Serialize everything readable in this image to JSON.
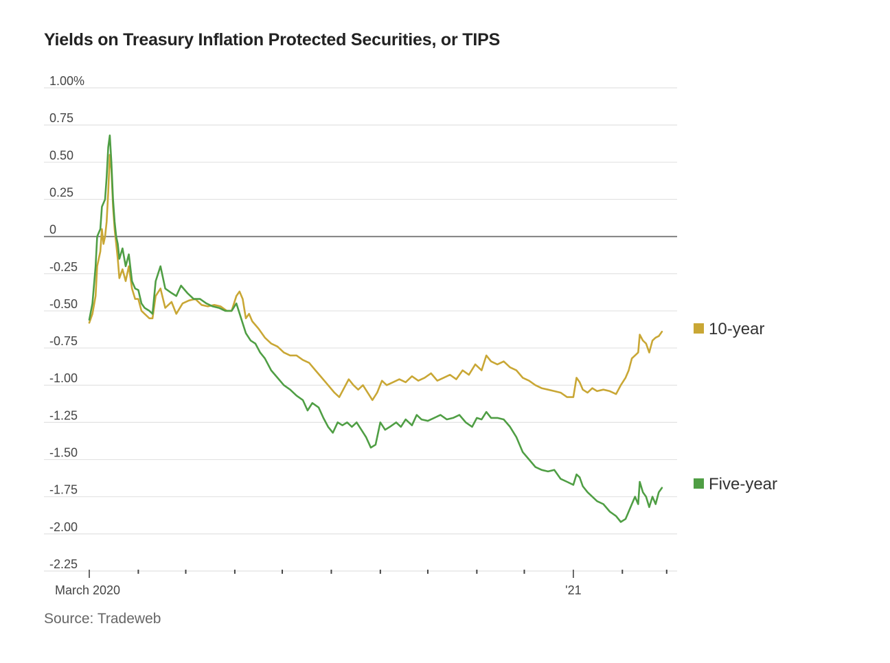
{
  "title": "Yields on Treasury Inflation Protected Securities, or TIPS",
  "source": "Source: Tradeweb",
  "chart_data": {
    "type": "line",
    "title": "Yields on Treasury Inflation Protected Securities, or TIPS",
    "xlabel": "",
    "ylabel": "",
    "xlim": [
      "2020-03-01",
      "2021-03-05"
    ],
    "ylim": [
      -2.25,
      1.0
    ],
    "yticks": [
      1.0,
      0.75,
      0.5,
      0.25,
      0,
      -0.25,
      -0.5,
      -0.75,
      -1.0,
      -1.25,
      -1.5,
      -1.75,
      -2.0,
      -2.25
    ],
    "ytick_labels": [
      "1.00%",
      "0.75",
      "0.50",
      "0.25",
      "0",
      "-0.25",
      "-0.50",
      "-0.75",
      "-1.00",
      "-1.25",
      "-1.50",
      "-1.75",
      "-2.00",
      "-2.25"
    ],
    "xticks": [
      "2020-03-01",
      "2020-04-01",
      "2020-05-01",
      "2020-06-01",
      "2020-07-01",
      "2020-08-01",
      "2020-09-01",
      "2020-10-01",
      "2020-11-01",
      "2020-12-01",
      "2021-01-01",
      "2021-02-01",
      "2021-03-01"
    ],
    "xtick_labels": {
      "2020-03-01": "March 2020",
      "2021-01-01": "'21"
    },
    "grid": true,
    "zero_line": true,
    "legend": "right, at line ends",
    "series": [
      {
        "name": "10-year",
        "color": "#c9a735",
        "points": [
          [
            "2020-03-01",
            -0.58
          ],
          [
            "2020-03-03",
            -0.52
          ],
          [
            "2020-03-05",
            -0.4
          ],
          [
            "2020-03-06",
            -0.2
          ],
          [
            "2020-03-08",
            -0.1
          ],
          [
            "2020-03-09",
            0.05
          ],
          [
            "2020-03-10",
            -0.05
          ],
          [
            "2020-03-11",
            0.0
          ],
          [
            "2020-03-12",
            0.1
          ],
          [
            "2020-03-13",
            0.3
          ],
          [
            "2020-03-14",
            0.55
          ],
          [
            "2020-03-15",
            0.45
          ],
          [
            "2020-03-16",
            0.2
          ],
          [
            "2020-03-17",
            0.05
          ],
          [
            "2020-03-18",
            -0.05
          ],
          [
            "2020-03-19",
            -0.15
          ],
          [
            "2020-03-20",
            -0.28
          ],
          [
            "2020-03-22",
            -0.22
          ],
          [
            "2020-03-24",
            -0.3
          ],
          [
            "2020-03-26",
            -0.2
          ],
          [
            "2020-03-28",
            -0.35
          ],
          [
            "2020-03-30",
            -0.42
          ],
          [
            "2020-04-01",
            -0.42
          ],
          [
            "2020-04-03",
            -0.5
          ],
          [
            "2020-04-05",
            -0.52
          ],
          [
            "2020-04-08",
            -0.55
          ],
          [
            "2020-04-10",
            -0.55
          ],
          [
            "2020-04-12",
            -0.4
          ],
          [
            "2020-04-15",
            -0.35
          ],
          [
            "2020-04-18",
            -0.48
          ],
          [
            "2020-04-22",
            -0.44
          ],
          [
            "2020-04-25",
            -0.52
          ],
          [
            "2020-04-29",
            -0.45
          ],
          [
            "2020-05-03",
            -0.43
          ],
          [
            "2020-05-07",
            -0.42
          ],
          [
            "2020-05-11",
            -0.46
          ],
          [
            "2020-05-15",
            -0.47
          ],
          [
            "2020-05-19",
            -0.46
          ],
          [
            "2020-05-23",
            -0.47
          ],
          [
            "2020-05-27",
            -0.5
          ],
          [
            "2020-05-30",
            -0.5
          ],
          [
            "2020-06-02",
            -0.4
          ],
          [
            "2020-06-04",
            -0.37
          ],
          [
            "2020-06-06",
            -0.42
          ],
          [
            "2020-06-08",
            -0.55
          ],
          [
            "2020-06-10",
            -0.52
          ],
          [
            "2020-06-12",
            -0.57
          ],
          [
            "2020-06-16",
            -0.62
          ],
          [
            "2020-06-20",
            -0.68
          ],
          [
            "2020-06-24",
            -0.72
          ],
          [
            "2020-06-28",
            -0.74
          ],
          [
            "2020-07-02",
            -0.78
          ],
          [
            "2020-07-06",
            -0.8
          ],
          [
            "2020-07-10",
            -0.8
          ],
          [
            "2020-07-14",
            -0.83
          ],
          [
            "2020-07-18",
            -0.85
          ],
          [
            "2020-07-22",
            -0.9
          ],
          [
            "2020-07-26",
            -0.95
          ],
          [
            "2020-07-30",
            -1.0
          ],
          [
            "2020-08-03",
            -1.05
          ],
          [
            "2020-08-06",
            -1.08
          ],
          [
            "2020-08-09",
            -1.02
          ],
          [
            "2020-08-12",
            -0.96
          ],
          [
            "2020-08-15",
            -1.0
          ],
          [
            "2020-08-18",
            -1.03
          ],
          [
            "2020-08-21",
            -1.0
          ],
          [
            "2020-08-24",
            -1.05
          ],
          [
            "2020-08-27",
            -1.1
          ],
          [
            "2020-08-30",
            -1.05
          ],
          [
            "2020-09-02",
            -0.97
          ],
          [
            "2020-09-05",
            -1.0
          ],
          [
            "2020-09-09",
            -0.98
          ],
          [
            "2020-09-13",
            -0.96
          ],
          [
            "2020-09-17",
            -0.98
          ],
          [
            "2020-09-21",
            -0.94
          ],
          [
            "2020-09-25",
            -0.97
          ],
          [
            "2020-09-29",
            -0.95
          ],
          [
            "2020-10-03",
            -0.92
          ],
          [
            "2020-10-07",
            -0.97
          ],
          [
            "2020-10-11",
            -0.95
          ],
          [
            "2020-10-15",
            -0.93
          ],
          [
            "2020-10-19",
            -0.96
          ],
          [
            "2020-10-23",
            -0.9
          ],
          [
            "2020-10-27",
            -0.93
          ],
          [
            "2020-10-31",
            -0.86
          ],
          [
            "2020-11-04",
            -0.9
          ],
          [
            "2020-11-07",
            -0.8
          ],
          [
            "2020-11-10",
            -0.84
          ],
          [
            "2020-11-14",
            -0.86
          ],
          [
            "2020-11-18",
            -0.84
          ],
          [
            "2020-11-22",
            -0.88
          ],
          [
            "2020-11-26",
            -0.9
          ],
          [
            "2020-11-30",
            -0.95
          ],
          [
            "2020-12-04",
            -0.97
          ],
          [
            "2020-12-08",
            -1.0
          ],
          [
            "2020-12-12",
            -1.02
          ],
          [
            "2020-12-16",
            -1.03
          ],
          [
            "2020-12-20",
            -1.04
          ],
          [
            "2020-12-24",
            -1.05
          ],
          [
            "2020-12-28",
            -1.08
          ],
          [
            "2021-01-01",
            -1.08
          ],
          [
            "2021-01-03",
            -0.95
          ],
          [
            "2021-01-05",
            -0.98
          ],
          [
            "2021-01-07",
            -1.03
          ],
          [
            "2021-01-10",
            -1.05
          ],
          [
            "2021-01-13",
            -1.02
          ],
          [
            "2021-01-16",
            -1.04
          ],
          [
            "2021-01-20",
            -1.03
          ],
          [
            "2021-01-24",
            -1.04
          ],
          [
            "2021-01-28",
            -1.06
          ],
          [
            "2021-01-31",
            -1.0
          ],
          [
            "2021-02-03",
            -0.95
          ],
          [
            "2021-02-05",
            -0.9
          ],
          [
            "2021-02-07",
            -0.82
          ],
          [
            "2021-02-09",
            -0.8
          ],
          [
            "2021-02-11",
            -0.78
          ],
          [
            "2021-02-12",
            -0.66
          ],
          [
            "2021-02-14",
            -0.7
          ],
          [
            "2021-02-16",
            -0.72
          ],
          [
            "2021-02-18",
            -0.78
          ],
          [
            "2021-02-20",
            -0.7
          ],
          [
            "2021-02-22",
            -0.68
          ],
          [
            "2021-02-24",
            -0.67
          ],
          [
            "2021-02-26",
            -0.64
          ]
        ]
      },
      {
        "name": "Five-year",
        "color": "#4f9e44",
        "points": [
          [
            "2020-03-01",
            -0.56
          ],
          [
            "2020-03-03",
            -0.45
          ],
          [
            "2020-03-05",
            -0.2
          ],
          [
            "2020-03-06",
            0.0
          ],
          [
            "2020-03-08",
            0.05
          ],
          [
            "2020-03-09",
            0.2
          ],
          [
            "2020-03-11",
            0.25
          ],
          [
            "2020-03-12",
            0.4
          ],
          [
            "2020-03-13",
            0.6
          ],
          [
            "2020-03-14",
            0.68
          ],
          [
            "2020-03-15",
            0.5
          ],
          [
            "2020-03-16",
            0.25
          ],
          [
            "2020-03-17",
            0.1
          ],
          [
            "2020-03-18",
            0.0
          ],
          [
            "2020-03-19",
            -0.05
          ],
          [
            "2020-03-20",
            -0.15
          ],
          [
            "2020-03-22",
            -0.08
          ],
          [
            "2020-03-24",
            -0.2
          ],
          [
            "2020-03-26",
            -0.12
          ],
          [
            "2020-03-28",
            -0.3
          ],
          [
            "2020-03-30",
            -0.35
          ],
          [
            "2020-04-01",
            -0.36
          ],
          [
            "2020-04-03",
            -0.45
          ],
          [
            "2020-04-05",
            -0.48
          ],
          [
            "2020-04-08",
            -0.5
          ],
          [
            "2020-04-10",
            -0.52
          ],
          [
            "2020-04-12",
            -0.3
          ],
          [
            "2020-04-15",
            -0.2
          ],
          [
            "2020-04-18",
            -0.35
          ],
          [
            "2020-04-22",
            -0.38
          ],
          [
            "2020-04-25",
            -0.4
          ],
          [
            "2020-04-28",
            -0.33
          ],
          [
            "2020-05-02",
            -0.38
          ],
          [
            "2020-05-06",
            -0.42
          ],
          [
            "2020-05-10",
            -0.42
          ],
          [
            "2020-05-14",
            -0.45
          ],
          [
            "2020-05-18",
            -0.47
          ],
          [
            "2020-05-22",
            -0.48
          ],
          [
            "2020-05-26",
            -0.5
          ],
          [
            "2020-05-30",
            -0.5
          ],
          [
            "2020-06-02",
            -0.45
          ],
          [
            "2020-06-05",
            -0.55
          ],
          [
            "2020-06-08",
            -0.65
          ],
          [
            "2020-06-11",
            -0.7
          ],
          [
            "2020-06-14",
            -0.72
          ],
          [
            "2020-06-17",
            -0.78
          ],
          [
            "2020-06-20",
            -0.82
          ],
          [
            "2020-06-24",
            -0.9
          ],
          [
            "2020-06-28",
            -0.95
          ],
          [
            "2020-07-02",
            -1.0
          ],
          [
            "2020-07-06",
            -1.03
          ],
          [
            "2020-07-10",
            -1.07
          ],
          [
            "2020-07-14",
            -1.1
          ],
          [
            "2020-07-17",
            -1.17
          ],
          [
            "2020-07-20",
            -1.12
          ],
          [
            "2020-07-24",
            -1.15
          ],
          [
            "2020-07-27",
            -1.22
          ],
          [
            "2020-07-30",
            -1.28
          ],
          [
            "2020-08-02",
            -1.32
          ],
          [
            "2020-08-05",
            -1.25
          ],
          [
            "2020-08-08",
            -1.27
          ],
          [
            "2020-08-11",
            -1.25
          ],
          [
            "2020-08-14",
            -1.28
          ],
          [
            "2020-08-17",
            -1.25
          ],
          [
            "2020-08-20",
            -1.3
          ],
          [
            "2020-08-23",
            -1.35
          ],
          [
            "2020-08-26",
            -1.42
          ],
          [
            "2020-08-29",
            -1.4
          ],
          [
            "2020-09-01",
            -1.25
          ],
          [
            "2020-09-04",
            -1.3
          ],
          [
            "2020-09-07",
            -1.28
          ],
          [
            "2020-09-11",
            -1.25
          ],
          [
            "2020-09-14",
            -1.28
          ],
          [
            "2020-09-17",
            -1.23
          ],
          [
            "2020-09-21",
            -1.27
          ],
          [
            "2020-09-24",
            -1.2
          ],
          [
            "2020-09-27",
            -1.23
          ],
          [
            "2020-10-01",
            -1.24
          ],
          [
            "2020-10-05",
            -1.22
          ],
          [
            "2020-10-09",
            -1.2
          ],
          [
            "2020-10-13",
            -1.23
          ],
          [
            "2020-10-17",
            -1.22
          ],
          [
            "2020-10-21",
            -1.2
          ],
          [
            "2020-10-25",
            -1.25
          ],
          [
            "2020-10-29",
            -1.28
          ],
          [
            "2020-11-01",
            -1.22
          ],
          [
            "2020-11-04",
            -1.23
          ],
          [
            "2020-11-07",
            -1.18
          ],
          [
            "2020-11-10",
            -1.22
          ],
          [
            "2020-11-14",
            -1.22
          ],
          [
            "2020-11-18",
            -1.23
          ],
          [
            "2020-11-22",
            -1.28
          ],
          [
            "2020-11-26",
            -1.35
          ],
          [
            "2020-11-30",
            -1.45
          ],
          [
            "2020-12-04",
            -1.5
          ],
          [
            "2020-12-08",
            -1.55
          ],
          [
            "2020-12-12",
            -1.57
          ],
          [
            "2020-12-16",
            -1.58
          ],
          [
            "2020-12-20",
            -1.57
          ],
          [
            "2020-12-24",
            -1.63
          ],
          [
            "2020-12-28",
            -1.65
          ],
          [
            "2021-01-01",
            -1.67
          ],
          [
            "2021-01-03",
            -1.6
          ],
          [
            "2021-01-05",
            -1.62
          ],
          [
            "2021-01-07",
            -1.68
          ],
          [
            "2021-01-10",
            -1.72
          ],
          [
            "2021-01-13",
            -1.75
          ],
          [
            "2021-01-16",
            -1.78
          ],
          [
            "2021-01-20",
            -1.8
          ],
          [
            "2021-01-24",
            -1.85
          ],
          [
            "2021-01-28",
            -1.88
          ],
          [
            "2021-01-31",
            -1.92
          ],
          [
            "2021-02-03",
            -1.9
          ],
          [
            "2021-02-05",
            -1.85
          ],
          [
            "2021-02-07",
            -1.8
          ],
          [
            "2021-02-09",
            -1.75
          ],
          [
            "2021-02-11",
            -1.8
          ],
          [
            "2021-02-12",
            -1.65
          ],
          [
            "2021-02-14",
            -1.72
          ],
          [
            "2021-02-16",
            -1.75
          ],
          [
            "2021-02-18",
            -1.82
          ],
          [
            "2021-02-20",
            -1.75
          ],
          [
            "2021-02-22",
            -1.8
          ],
          [
            "2021-02-24",
            -1.72
          ],
          [
            "2021-02-26",
            -1.69
          ]
        ]
      }
    ]
  }
}
